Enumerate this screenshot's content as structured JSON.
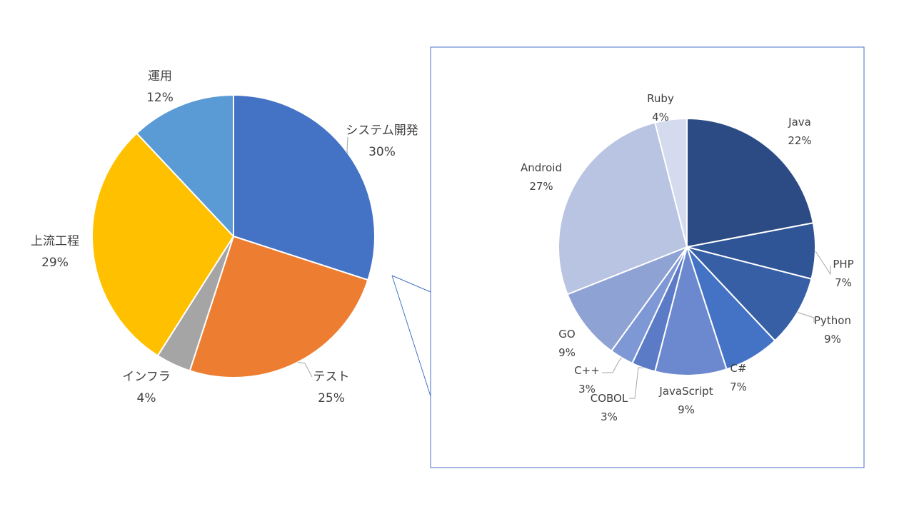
{
  "chart_data": [
    {
      "type": "pie",
      "categories": [
        "システム開発",
        "テスト",
        "インフラ",
        "上流工程",
        "運用"
      ],
      "values": [
        30,
        25,
        4,
        29,
        12
      ],
      "value_labels": [
        "30%",
        "25%",
        "4%",
        "29%",
        "12%"
      ],
      "colors": [
        "#4472C4",
        "#ED7D31",
        "#A5A5A5",
        "#FFC000",
        "#5B9BD5"
      ],
      "start": "12 o'clock, clockwise"
    },
    {
      "type": "pie",
      "categories": [
        "Java",
        "PHP",
        "Python",
        "C#",
        "JavaScript",
        "COBOL",
        "C++",
        "GO",
        "Android",
        "Ruby"
      ],
      "values": [
        22,
        7,
        9,
        7,
        9,
        3,
        3,
        9,
        27,
        4
      ],
      "value_labels": [
        "22%",
        "7%",
        "9%",
        "7%",
        "9%",
        "3%",
        "3%",
        "9%",
        "27%",
        "4%"
      ],
      "colors": [
        "#2C4B84",
        "#2F5597",
        "#365FA5",
        "#4472C4",
        "#6C89CF",
        "#5B7BC6",
        "#7E98D5",
        "#8FA2D4",
        "#B9C3E2",
        "#D4DBEE"
      ],
      "start": "12 o'clock, clockwise"
    }
  ]
}
